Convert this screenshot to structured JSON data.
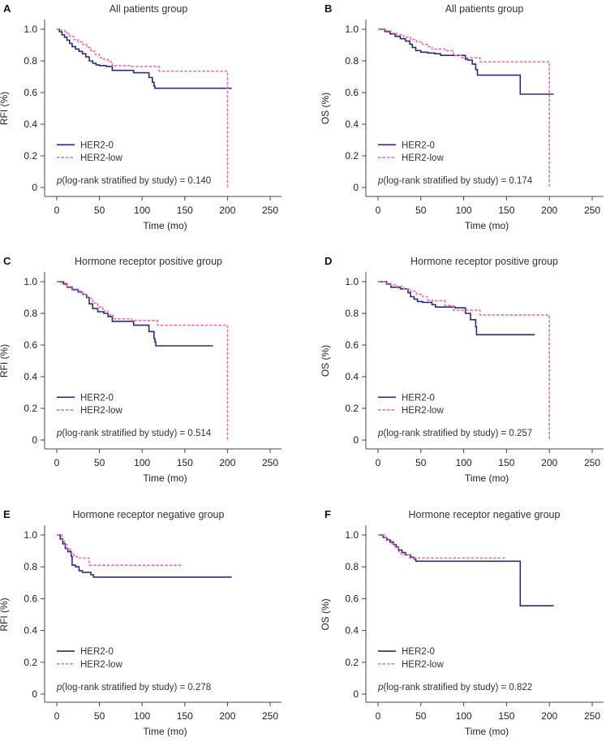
{
  "figure": {
    "colors": {
      "her2_0": "#2e2a7a",
      "her2_low": "#ee6fa8",
      "axis": "#444444"
    }
  },
  "chart_data": [
    {
      "type": "line",
      "panel": "A",
      "title": "All patients group",
      "xlabel": "Time (mo)",
      "ylabel": "RFI (%)",
      "xlim": [
        0,
        250
      ],
      "ylim": [
        0,
        1.0
      ],
      "xticks": [
        "0",
        "50",
        "100",
        "150",
        "200",
        "250"
      ],
      "yticks": [
        "0",
        "0.2",
        "0.4",
        "0.6",
        "0.8",
        "1.0"
      ],
      "legend": [
        "HER2-0",
        "HER2-low"
      ],
      "legend_position": "bottom-left",
      "annotation": {
        "p_symbol": "p",
        "text": "(log-rank stratified by study) = 0.140"
      },
      "series": [
        {
          "name": "HER2-0",
          "style": "solid",
          "x": [
            0,
            3,
            6,
            9,
            12,
            15,
            18,
            22,
            26,
            30,
            34,
            38,
            42,
            46,
            50,
            58,
            65,
            90,
            108,
            112,
            114,
            115,
            205
          ],
          "y": [
            1.0,
            0.985,
            0.965,
            0.95,
            0.93,
            0.91,
            0.89,
            0.875,
            0.86,
            0.845,
            0.825,
            0.8,
            0.785,
            0.775,
            0.77,
            0.765,
            0.74,
            0.725,
            0.695,
            0.665,
            0.64,
            0.627,
            0.627
          ]
        },
        {
          "name": "HER2-low",
          "style": "dashed",
          "x": [
            0,
            5,
            10,
            15,
            20,
            25,
            30,
            35,
            40,
            45,
            50,
            55,
            60,
            65,
            88,
            120,
            200,
            200
          ],
          "y": [
            1.0,
            0.99,
            0.975,
            0.955,
            0.935,
            0.92,
            0.905,
            0.885,
            0.86,
            0.84,
            0.82,
            0.81,
            0.795,
            0.77,
            0.765,
            0.735,
            0.735,
            0.0
          ]
        }
      ]
    },
    {
      "type": "line",
      "panel": "B",
      "title": "All patients group",
      "xlabel": "Time (mo)",
      "ylabel": "OS (%)",
      "xlim": [
        0,
        250
      ],
      "ylim": [
        0,
        1.0
      ],
      "xticks": [
        "0",
        "50",
        "100",
        "150",
        "200",
        "250"
      ],
      "yticks": [
        "0",
        "0.2",
        "0.4",
        "0.6",
        "0.8",
        "1.0"
      ],
      "legend": [
        "HER2-0",
        "HER2-low"
      ],
      "legend_position": "bottom-left",
      "annotation": {
        "p_symbol": "p",
        "text": "(log-rank stratified by study) = 0.174"
      },
      "series": [
        {
          "name": "HER2-0",
          "style": "solid",
          "x": [
            0,
            8,
            14,
            20,
            26,
            32,
            37,
            40,
            44,
            50,
            58,
            66,
            73,
            102,
            105,
            110,
            114,
            116,
            166,
            205
          ],
          "y": [
            1.0,
            0.985,
            0.97,
            0.955,
            0.94,
            0.925,
            0.905,
            0.885,
            0.865,
            0.855,
            0.85,
            0.845,
            0.835,
            0.81,
            0.805,
            0.78,
            0.745,
            0.71,
            0.59,
            0.59
          ]
        },
        {
          "name": "HER2-low",
          "style": "dashed",
          "x": [
            0,
            8,
            15,
            22,
            30,
            38,
            45,
            52,
            57,
            63,
            78,
            88,
            98,
            119,
            200,
            200
          ],
          "y": [
            1.0,
            0.99,
            0.975,
            0.965,
            0.95,
            0.935,
            0.92,
            0.905,
            0.89,
            0.875,
            0.865,
            0.835,
            0.82,
            0.795,
            0.795,
            0.0
          ]
        }
      ]
    },
    {
      "type": "line",
      "panel": "C",
      "title": "Hormone receptor positive group",
      "xlabel": "Time (mo)",
      "ylabel": "RFI (%)",
      "xlim": [
        0,
        250
      ],
      "ylim": [
        0,
        1.0
      ],
      "xticks": [
        "0",
        "50",
        "100",
        "150",
        "200",
        "250"
      ],
      "yticks": [
        "0",
        "0.2",
        "0.4",
        "0.6",
        "0.8",
        "1.0"
      ],
      "legend": [
        "HER2-0",
        "HER2-low"
      ],
      "legend_position": "bottom-left",
      "annotation": {
        "p_symbol": "p",
        "text": "(log-rank stratified by study) = 0.514"
      },
      "series": [
        {
          "name": "HER2-0",
          "style": "solid",
          "x": [
            0,
            8,
            12,
            18,
            25,
            30,
            35,
            38,
            42,
            48,
            55,
            60,
            65,
            90,
            108,
            114,
            115,
            116,
            183
          ],
          "y": [
            1.0,
            0.985,
            0.965,
            0.95,
            0.935,
            0.92,
            0.9,
            0.86,
            0.83,
            0.81,
            0.8,
            0.78,
            0.75,
            0.725,
            0.685,
            0.64,
            0.62,
            0.595,
            0.595
          ]
        },
        {
          "name": "HER2-low",
          "style": "dashed",
          "x": [
            0,
            6,
            12,
            18,
            24,
            30,
            36,
            42,
            48,
            54,
            60,
            66,
            88,
            118,
            200,
            200
          ],
          "y": [
            1.0,
            0.99,
            0.97,
            0.955,
            0.94,
            0.92,
            0.895,
            0.865,
            0.84,
            0.815,
            0.79,
            0.765,
            0.755,
            0.725,
            0.725,
            0.0
          ]
        }
      ]
    },
    {
      "type": "line",
      "panel": "D",
      "title": "Hormone receptor positive group",
      "xlabel": "Time (mo)",
      "ylabel": "OS (%)",
      "xlim": [
        0,
        250
      ],
      "ylim": [
        0,
        1.0
      ],
      "xticks": [
        "0",
        "50",
        "100",
        "150",
        "200",
        "250"
      ],
      "yticks": [
        "0",
        "0.2",
        "0.4",
        "0.6",
        "0.8",
        "1.0"
      ],
      "legend": [
        "HER2-0",
        "HER2-low"
      ],
      "legend_position": "bottom-left",
      "annotation": {
        "p_symbol": "p",
        "text": "(log-rank stratified by study) = 0.257"
      },
      "series": [
        {
          "name": "HER2-0",
          "style": "solid",
          "x": [
            0,
            10,
            15,
            26,
            35,
            38,
            42,
            46,
            52,
            63,
            67,
            90,
            102,
            108,
            114,
            115,
            183
          ],
          "y": [
            1.0,
            0.985,
            0.965,
            0.955,
            0.93,
            0.905,
            0.89,
            0.875,
            0.87,
            0.855,
            0.84,
            0.835,
            0.8,
            0.76,
            0.715,
            0.665,
            0.665
          ]
        },
        {
          "name": "HER2-low",
          "style": "dashed",
          "x": [
            0,
            8,
            15,
            22,
            30,
            38,
            45,
            52,
            58,
            63,
            78,
            88,
            119,
            200,
            200
          ],
          "y": [
            1.0,
            0.99,
            0.98,
            0.97,
            0.955,
            0.94,
            0.92,
            0.905,
            0.885,
            0.88,
            0.85,
            0.82,
            0.79,
            0.79,
            0.0
          ]
        }
      ]
    },
    {
      "type": "line",
      "panel": "E",
      "title": "Hormone receptor negative group",
      "xlabel": "Time (mo)",
      "ylabel": "RFI (%)",
      "xlim": [
        0,
        250
      ],
      "ylim": [
        0,
        1.0
      ],
      "xticks": [
        "0",
        "50",
        "100",
        "150",
        "200",
        "250"
      ],
      "yticks": [
        "0",
        "0.2",
        "0.4",
        "0.6",
        "0.8",
        "1.0"
      ],
      "legend": [
        "HER2-0",
        "HER2-low"
      ],
      "legend_position": "bottom-left",
      "annotation": {
        "p_symbol": "p",
        "text": "(log-rank stratified by study) = 0.278"
      },
      "series": [
        {
          "name": "HER2-0",
          "style": "solid",
          "x": [
            0,
            4,
            7,
            10,
            13,
            17,
            18,
            22,
            26,
            30,
            40,
            43,
            205
          ],
          "y": [
            1.0,
            0.975,
            0.945,
            0.915,
            0.895,
            0.865,
            0.81,
            0.8,
            0.775,
            0.765,
            0.75,
            0.735,
            0.735
          ]
        },
        {
          "name": "HER2-low",
          "style": "dashed",
          "x": [
            0,
            6,
            9,
            12,
            16,
            20,
            24,
            38,
            148
          ],
          "y": [
            1.0,
            0.97,
            0.94,
            0.91,
            0.885,
            0.865,
            0.855,
            0.81,
            0.81
          ]
        }
      ]
    },
    {
      "type": "line",
      "panel": "F",
      "title": "Hormone receptor negative group",
      "xlabel": "Time (mo)",
      "ylabel": "OS (%)",
      "xlim": [
        0,
        250
      ],
      "ylim": [
        0,
        1.0
      ],
      "xticks": [
        "0",
        "50",
        "100",
        "150",
        "200",
        "250"
      ],
      "yticks": [
        "0",
        "0.2",
        "0.4",
        "0.6",
        "0.8",
        "1.0"
      ],
      "legend": [
        "HER2-0",
        "HER2-low"
      ],
      "legend_position": "bottom-left",
      "annotation": {
        "p_symbol": "p",
        "text": "(log-rank stratified by study) = 0.822"
      },
      "series": [
        {
          "name": "HER2-0",
          "style": "solid",
          "x": [
            0,
            6,
            10,
            14,
            18,
            21,
            24,
            28,
            32,
            38,
            42,
            44,
            166,
            205
          ],
          "y": [
            1.0,
            0.985,
            0.97,
            0.955,
            0.94,
            0.925,
            0.905,
            0.89,
            0.875,
            0.86,
            0.85,
            0.835,
            0.555,
            0.555
          ]
        },
        {
          "name": "HER2-low",
          "style": "dashed",
          "x": [
            0,
            8,
            12,
            16,
            20,
            24,
            27,
            37,
            148
          ],
          "y": [
            1.0,
            0.985,
            0.965,
            0.945,
            0.92,
            0.895,
            0.875,
            0.855,
            0.855
          ]
        }
      ]
    }
  ]
}
